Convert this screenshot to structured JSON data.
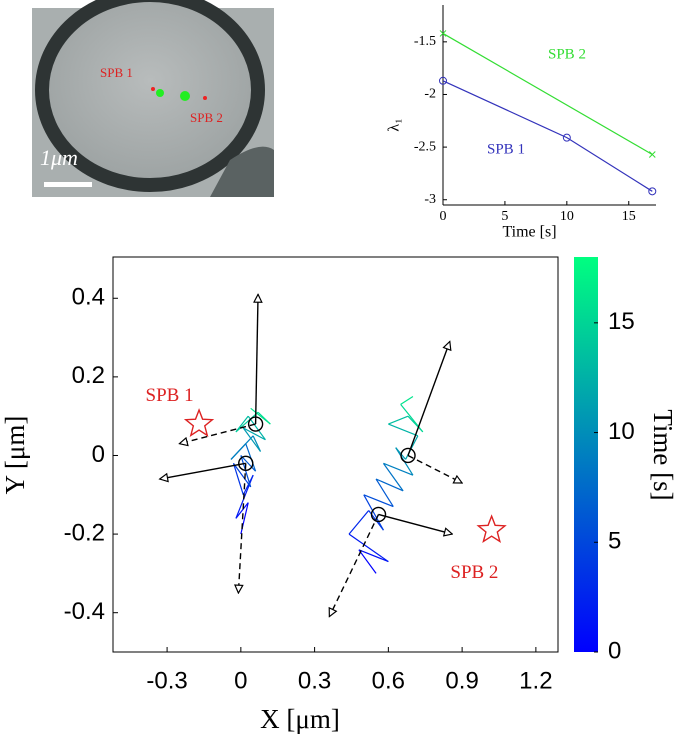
{
  "image": {
    "labels": [
      "SPB 1",
      "SPB 2"
    ],
    "scale_label": "1μm"
  },
  "chart_data": [
    {
      "type": "line",
      "ylabel": "λ₁",
      "xlabel": "Time [s]",
      "xlim": [
        0,
        17.2
      ],
      "xticks": [
        0,
        5,
        10,
        15
      ],
      "ylim": [
        -3.05,
        -1.15
      ],
      "yticks": [
        -1.5,
        -2,
        -2.5,
        -3
      ],
      "series": [
        {
          "name": "SPB 2",
          "color": "#33dd33",
          "marker": "x",
          "x": [
            0,
            16.9
          ],
          "values": [
            -1.42,
            -2.57
          ]
        },
        {
          "name": "SPB 1",
          "color": "#3333bb",
          "marker": "o",
          "x": [
            0,
            10,
            16.9
          ],
          "values": [
            -1.87,
            -2.41,
            -2.92
          ]
        }
      ]
    },
    {
      "type": "trajectory",
      "xlabel": "X [μm]",
      "ylabel": "Y [μm]",
      "xlim": [
        -0.52,
        1.29
      ],
      "xticks": [
        -0.3,
        0,
        0.3,
        0.6,
        0.9,
        1.2
      ],
      "ylim": [
        -0.5,
        0.505
      ],
      "yticks": [
        0.4,
        0.2,
        0,
        -0.2,
        -0.4
      ],
      "colorbar": {
        "label": "Time [s]",
        "lim": [
          0,
          18
        ],
        "ticks": [
          0,
          5,
          10,
          15
        ],
        "colors": [
          "#0000ff",
          "#00ff80"
        ]
      },
      "series": [
        {
          "time": [
            0,
            0.9,
            1.8,
            2.7,
            3.6,
            4.5,
            5.4,
            6.3,
            7.2,
            8.1,
            9,
            9.9,
            10.8,
            11.7,
            12.6,
            13.5,
            14.4,
            15.3,
            16.2,
            17.1
          ],
          "x": [
            0.0,
            0.03,
            -0.02,
            0.05,
            0.01,
            -0.03,
            0.04,
            0.0,
            0.06,
            0.02,
            -0.04,
            0.05,
            0.08,
            0.01,
            0.1,
            0.03,
            -0.02,
            0.07,
            0.12,
            0.04
          ],
          "values": [
            -0.2,
            -0.12,
            -0.16,
            -0.05,
            -0.1,
            -0.02,
            -0.08,
            0.0,
            -0.04,
            0.03,
            -0.01,
            0.05,
            0.01,
            0.07,
            0.04,
            0.1,
            0.06,
            0.11,
            0.08,
            0.12
          ]
        },
        {
          "time": [
            0,
            0.9,
            1.8,
            2.7,
            3.6,
            4.5,
            5.4,
            6.3,
            7.2,
            8.1,
            9,
            9.9,
            10.8,
            11.7,
            12.6,
            13.5,
            14.4,
            15.3,
            16.2,
            17.1
          ],
          "x": [
            0.55,
            0.48,
            0.6,
            0.44,
            0.52,
            0.58,
            0.5,
            0.62,
            0.55,
            0.66,
            0.58,
            0.7,
            0.63,
            0.67,
            0.72,
            0.6,
            0.68,
            0.74,
            0.65,
            0.7
          ],
          "values": [
            -0.3,
            -0.24,
            -0.27,
            -0.2,
            -0.14,
            -0.19,
            -0.1,
            -0.13,
            -0.06,
            -0.09,
            -0.02,
            -0.05,
            0.02,
            -0.01,
            0.05,
            0.08,
            0.1,
            0.06,
            0.13,
            0.15
          ]
        }
      ],
      "centers": [
        [
          0.06,
          0.08
        ],
        [
          0.02,
          -0.02
        ],
        [
          0.68,
          0.0
        ],
        [
          0.56,
          -0.15
        ]
      ],
      "arrows": [
        {
          "from": [
            0.06,
            0.08
          ],
          "to": [
            0.07,
            0.41
          ],
          "style": "solid"
        },
        {
          "from": [
            0.06,
            0.08
          ],
          "to": [
            -0.25,
            0.03
          ],
          "style": "dashed"
        },
        {
          "from": [
            0.02,
            -0.02
          ],
          "to": [
            -0.33,
            -0.06
          ],
          "style": "solid"
        },
        {
          "from": [
            0.02,
            -0.02
          ],
          "to": [
            -0.01,
            -0.35
          ],
          "style": "dashed"
        },
        {
          "from": [
            0.68,
            0.0
          ],
          "to": [
            0.85,
            0.29
          ],
          "style": "solid"
        },
        {
          "from": [
            0.68,
            0.0
          ],
          "to": [
            0.9,
            -0.07
          ],
          "style": "dashed"
        },
        {
          "from": [
            0.56,
            -0.15
          ],
          "to": [
            0.86,
            -0.2
          ],
          "style": "solid"
        },
        {
          "from": [
            0.56,
            -0.15
          ],
          "to": [
            0.36,
            -0.41
          ],
          "style": "dashed"
        }
      ],
      "stars": [
        {
          "label": "SPB 1",
          "x": -0.17,
          "y": 0.08,
          "label_x": -0.29,
          "label_y": 0.15
        },
        {
          "label": "SPB 2",
          "x": 1.02,
          "y": -0.19,
          "label_x": 0.95,
          "label_y": -0.3
        }
      ],
      "star_color": "#dd2222"
    }
  ]
}
